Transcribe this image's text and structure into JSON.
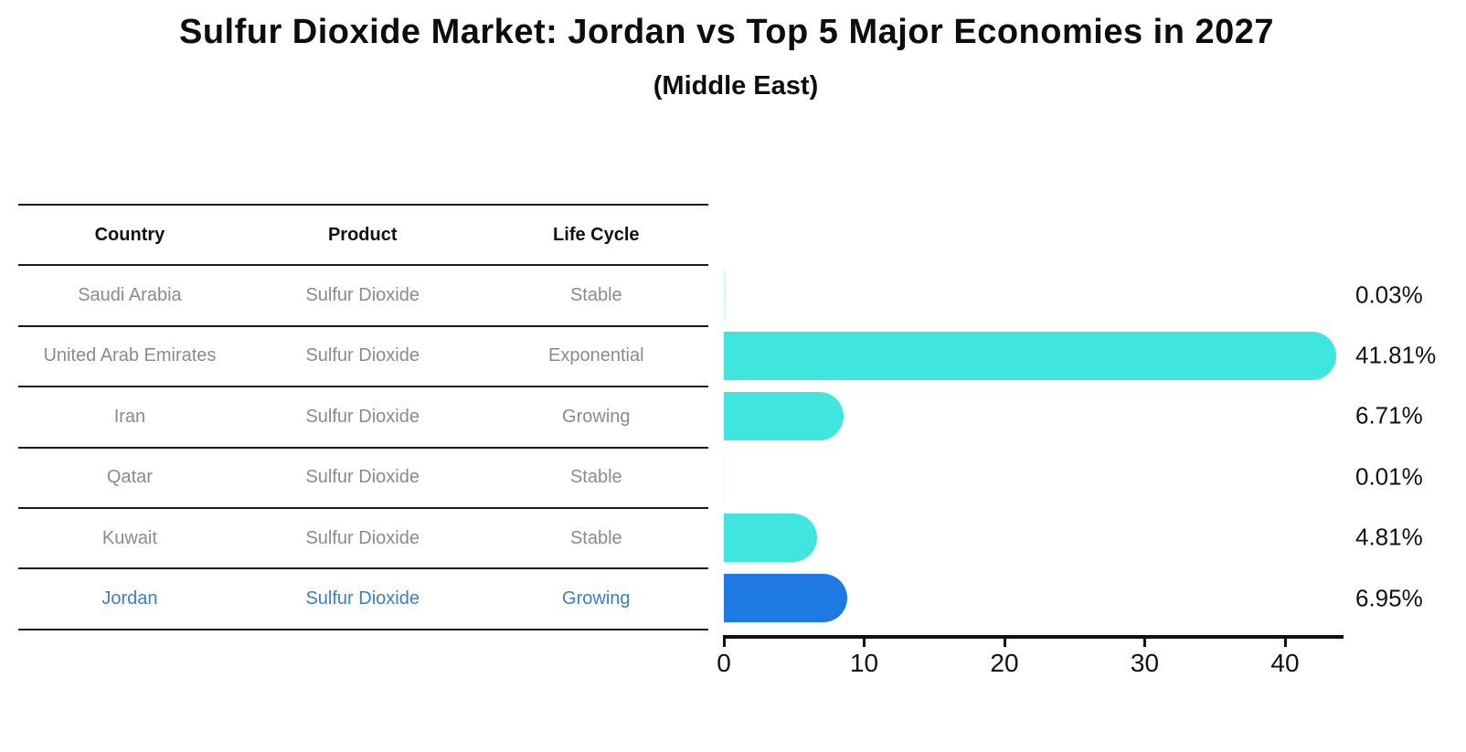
{
  "title": "Sulfur Dioxide Market: Jordan vs Top 5 Major Economies in 2027",
  "subtitle": "(Middle East)",
  "table": {
    "columns": [
      "Country",
      "Product",
      "Life Cycle"
    ],
    "rows": [
      {
        "country": "Saudi Arabia",
        "product": "Sulfur Dioxide",
        "life_cycle": "Stable",
        "value": 0.03,
        "value_label": "0.03%",
        "highlight": false
      },
      {
        "country": "United Arab Emirates",
        "product": "Sulfur Dioxide",
        "life_cycle": "Exponential",
        "value": 41.81,
        "value_label": "41.81%",
        "highlight": false
      },
      {
        "country": "Iran",
        "product": "Sulfur Dioxide",
        "life_cycle": "Growing",
        "value": 6.71,
        "value_label": "6.71%",
        "highlight": false
      },
      {
        "country": "Qatar",
        "product": "Sulfur Dioxide",
        "life_cycle": "Stable",
        "value": 0.01,
        "value_label": "0.01%",
        "highlight": false
      },
      {
        "country": "Kuwait",
        "product": "Sulfur Dioxide",
        "life_cycle": "Stable",
        "value": 4.81,
        "value_label": "4.81%",
        "highlight": false
      },
      {
        "country": "Jordan",
        "product": "Sulfur Dioxide",
        "life_cycle": "Growing",
        "value": 6.95,
        "value_label": "6.95%",
        "highlight": true
      }
    ]
  },
  "chart_data": {
    "type": "bar",
    "orientation": "horizontal",
    "title": "Sulfur Dioxide Market: Jordan vs Top 5 Major Economies in 2027 (Middle East)",
    "categories": [
      "Saudi Arabia",
      "United Arab Emirates",
      "Iran",
      "Qatar",
      "Kuwait",
      "Jordan"
    ],
    "values": [
      0.03,
      41.81,
      6.71,
      0.01,
      4.81,
      6.95
    ],
    "value_labels": [
      "0.03%",
      "41.81%",
      "6.71%",
      "0.01%",
      "4.81%",
      "6.95%"
    ],
    "xlabel": "",
    "ylabel": "",
    "xlim": [
      0,
      44.3
    ],
    "xticks": [
      0,
      10,
      20,
      30,
      40
    ],
    "grid": false,
    "legend": false,
    "bar_color": "#40E6DD",
    "highlight_color": "#1E7AE2",
    "highlight_index": 5
  },
  "colors": {
    "bar_cyan": "#40E6DD",
    "bar_blue": "#1E7AE2",
    "highlight_text": "#3b7fc4",
    "table_text": "#8b8b8b",
    "heading_text": "#111111",
    "line": "#1a1a1a"
  }
}
